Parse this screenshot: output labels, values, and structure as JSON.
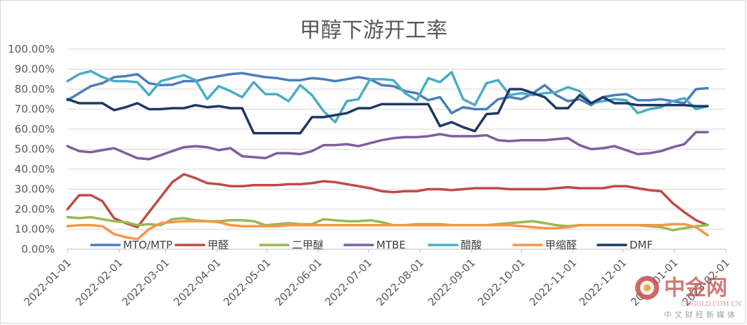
{
  "chart_data": {
    "type": "line",
    "title": "甲醇下游开工率",
    "xlabel": "",
    "ylabel": "",
    "ylim": [
      0,
      1.0
    ],
    "y_tick_labels": [
      "0.00%",
      "10.00%",
      "20.00%",
      "30.00%",
      "40.00%",
      "50.00%",
      "60.00%",
      "70.00%",
      "80.00%",
      "90.00%",
      "100.00%"
    ],
    "x_tick_labels": [
      "2022-01-01",
      "2022-02-01",
      "2022-03-01",
      "2022-04-01",
      "2022-05-01",
      "2022-06-01",
      "2022-07-01",
      "2022-08-01",
      "2022-09-01",
      "2022-10-01",
      "2022-11-01",
      "2022-12-01",
      "2023-01-01",
      "2023-02-01"
    ],
    "x_range": [
      "2022-01-01",
      "2023-02-01"
    ],
    "x_step_days": 7,
    "grid": "horizontal",
    "legend_position": "bottom-inside",
    "series": [
      {
        "name": "MTO/MTP",
        "color": "#4a7ebb",
        "values": [
          0.745,
          0.78,
          0.815,
          0.83,
          0.86,
          0.865,
          0.875,
          0.83,
          0.82,
          0.822,
          0.84,
          0.84,
          0.855,
          0.865,
          0.875,
          0.88,
          0.87,
          0.86,
          0.855,
          0.845,
          0.845,
          0.855,
          0.85,
          0.84,
          0.85,
          0.86,
          0.85,
          0.82,
          0.815,
          0.79,
          0.78,
          0.745,
          0.76,
          0.68,
          0.71,
          0.7,
          0.7,
          0.75,
          0.76,
          0.75,
          0.78,
          0.82,
          0.77,
          0.74,
          0.75,
          0.72,
          0.76,
          0.77,
          0.775,
          0.745,
          0.745,
          0.75,
          0.74,
          0.73,
          0.8,
          0.805
        ]
      },
      {
        "name": "甲醛",
        "color": "#be4b48",
        "values": [
          0.2,
          0.27,
          0.27,
          0.24,
          0.155,
          0.13,
          0.11,
          0.185,
          0.26,
          0.335,
          0.375,
          0.355,
          0.33,
          0.325,
          0.315,
          0.315,
          0.32,
          0.32,
          0.32,
          0.325,
          0.325,
          0.33,
          0.34,
          0.335,
          0.325,
          0.315,
          0.305,
          0.29,
          0.285,
          0.29,
          0.29,
          0.3,
          0.3,
          0.295,
          0.3,
          0.305,
          0.305,
          0.305,
          0.3,
          0.3,
          0.3,
          0.3,
          0.305,
          0.31,
          0.305,
          0.305,
          0.305,
          0.315,
          0.315,
          0.305,
          0.295,
          0.29,
          0.23,
          0.185,
          0.145,
          0.12
        ]
      },
      {
        "name": "二甲醚",
        "color": "#98b954",
        "values": [
          0.16,
          0.155,
          0.16,
          0.15,
          0.14,
          0.135,
          0.12,
          0.125,
          0.12,
          0.15,
          0.155,
          0.145,
          0.14,
          0.14,
          0.145,
          0.145,
          0.14,
          0.12,
          0.125,
          0.13,
          0.125,
          0.125,
          0.15,
          0.145,
          0.14,
          0.14,
          0.145,
          0.135,
          0.12,
          0.12,
          0.125,
          0.125,
          0.125,
          0.12,
          0.12,
          0.12,
          0.12,
          0.125,
          0.13,
          0.135,
          0.14,
          0.13,
          0.12,
          0.115,
          0.12,
          0.12,
          0.12,
          0.12,
          0.12,
          0.12,
          0.115,
          0.11,
          0.095,
          0.105,
          0.115,
          0.12
        ]
      },
      {
        "name": "MTBE",
        "color": "#7d5fa0",
        "values": [
          0.515,
          0.49,
          0.485,
          0.495,
          0.505,
          0.48,
          0.455,
          0.45,
          0.47,
          0.49,
          0.51,
          0.515,
          0.51,
          0.495,
          0.505,
          0.465,
          0.46,
          0.455,
          0.48,
          0.48,
          0.475,
          0.49,
          0.52,
          0.52,
          0.525,
          0.515,
          0.53,
          0.545,
          0.555,
          0.56,
          0.56,
          0.565,
          0.575,
          0.565,
          0.565,
          0.565,
          0.57,
          0.545,
          0.54,
          0.545,
          0.545,
          0.545,
          0.55,
          0.555,
          0.52,
          0.5,
          0.505,
          0.515,
          0.495,
          0.475,
          0.48,
          0.49,
          0.51,
          0.525,
          0.585,
          0.585
        ]
      },
      {
        "name": "醋酸",
        "color": "#4bacc6",
        "values": [
          0.84,
          0.875,
          0.89,
          0.86,
          0.84,
          0.84,
          0.835,
          0.77,
          0.84,
          0.855,
          0.87,
          0.845,
          0.75,
          0.815,
          0.79,
          0.76,
          0.835,
          0.775,
          0.775,
          0.74,
          0.82,
          0.77,
          0.69,
          0.635,
          0.74,
          0.75,
          0.85,
          0.85,
          0.845,
          0.78,
          0.745,
          0.855,
          0.835,
          0.885,
          0.75,
          0.72,
          0.83,
          0.845,
          0.77,
          0.78,
          0.77,
          0.78,
          0.785,
          0.81,
          0.79,
          0.73,
          0.74,
          0.75,
          0.745,
          0.68,
          0.7,
          0.71,
          0.74,
          0.755,
          0.7,
          0.715
        ]
      },
      {
        "name": "甲缩醛",
        "color": "#f79646",
        "values": [
          0.115,
          0.12,
          0.12,
          0.115,
          0.075,
          0.06,
          0.05,
          0.1,
          0.13,
          0.135,
          0.14,
          0.14,
          0.14,
          0.135,
          0.12,
          0.115,
          0.115,
          0.115,
          0.115,
          0.12,
          0.12,
          0.12,
          0.12,
          0.12,
          0.12,
          0.12,
          0.12,
          0.12,
          0.12,
          0.12,
          0.12,
          0.12,
          0.12,
          0.12,
          0.12,
          0.12,
          0.12,
          0.12,
          0.12,
          0.115,
          0.11,
          0.105,
          0.105,
          0.11,
          0.12,
          0.12,
          0.12,
          0.12,
          0.12,
          0.12,
          0.12,
          0.12,
          0.125,
          0.125,
          0.11,
          0.07
        ]
      },
      {
        "name": "DMF",
        "color": "#1f3864",
        "values": [
          0.75,
          0.73,
          0.73,
          0.73,
          0.695,
          0.71,
          0.73,
          0.7,
          0.7,
          0.705,
          0.705,
          0.72,
          0.71,
          0.715,
          0.705,
          0.705,
          0.58,
          0.58,
          0.58,
          0.58,
          0.58,
          0.66,
          0.66,
          0.67,
          0.68,
          0.705,
          0.705,
          0.725,
          0.725,
          0.725,
          0.725,
          0.725,
          0.615,
          0.635,
          0.61,
          0.59,
          0.675,
          0.68,
          0.8,
          0.8,
          0.78,
          0.76,
          0.705,
          0.705,
          0.77,
          0.73,
          0.76,
          0.73,
          0.73,
          0.72,
          0.72,
          0.72,
          0.72,
          0.72,
          0.715,
          0.715
        ]
      }
    ]
  },
  "watermark": {
    "logo_text": "中金网",
    "site": "CNGOLD.COM.CN",
    "slogan": "中文财经新媒体",
    "color": "#c0504d"
  }
}
